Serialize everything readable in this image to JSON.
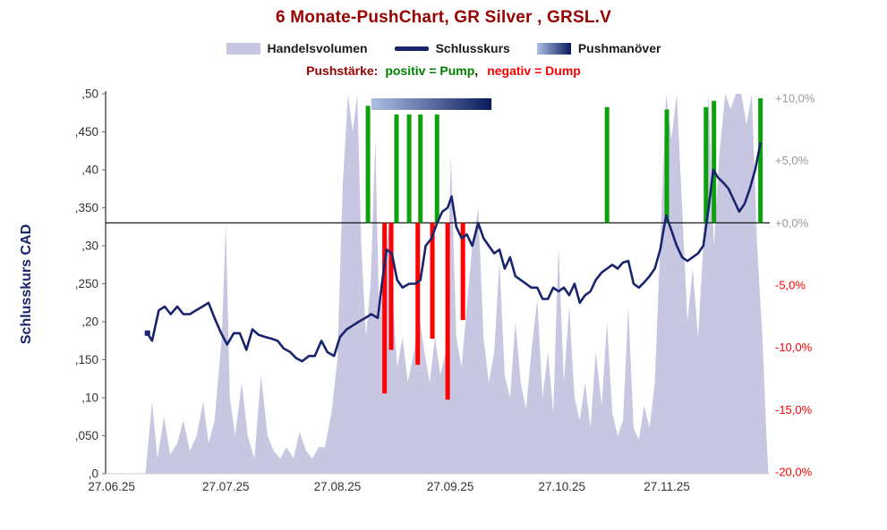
{
  "colors": {
    "title": "#990000",
    "legend_text": "#1a1a1a",
    "axis_text": "#333333",
    "axis_title": "#19246e",
    "volume": "#c7c7e2",
    "price": "#19246e",
    "pump": "#0da10d",
    "pump_text": "#008000",
    "dump": "#ff0000",
    "push_light": "#aebfe4",
    "push_dark": "#0a1a5c",
    "tick_positive": "#999999",
    "tick_negative": "#ff0000"
  },
  "chart_data": {
    "type": "mixed",
    "title": "6 Monate-PushChart, GR Silver , GRSL.V",
    "legend": {
      "volume": "Handelsvolumen",
      "close": "Schlusskurs",
      "push": "Pushmanöver"
    },
    "annotation": {
      "prefix": "Pushstärke:",
      "pump": "positiv = Pump",
      "separator": ",",
      "dump": "negativ = Dump"
    },
    "left_axis": {
      "label": "Schlusskurs CAD",
      "unit": "CAD",
      "min": 0,
      "max": 0.5,
      "ticks": [
        {
          "v": 0.0,
          "label": ",0"
        },
        {
          "v": 0.05,
          "label": ",050"
        },
        {
          "v": 0.1,
          "label": ",10"
        },
        {
          "v": 0.15,
          "label": ",150"
        },
        {
          "v": 0.2,
          "label": ",20"
        },
        {
          "v": 0.25,
          "label": ",250"
        },
        {
          "v": 0.3,
          "label": ",30"
        },
        {
          "v": 0.35,
          "label": ",350"
        },
        {
          "v": 0.4,
          "label": ",40"
        },
        {
          "v": 0.45,
          "label": ",450"
        },
        {
          "v": 0.5,
          "label": ",50"
        }
      ]
    },
    "right_axis": {
      "min": -20,
      "max": 10,
      "ticks": [
        {
          "v": 10,
          "label": "+10,0%",
          "color": "#999999"
        },
        {
          "v": 5,
          "label": "+5,0%",
          "color": "#999999"
        },
        {
          "v": 0,
          "label": "+0,0%",
          "color": "#999999"
        },
        {
          "v": -5,
          "label": "-5,0%",
          "color": "#ff0000"
        },
        {
          "v": -10,
          "label": "-10,0%",
          "color": "#ff0000"
        },
        {
          "v": -15,
          "label": "-15,0%",
          "color": "#ff0000"
        },
        {
          "v": -20,
          "label": "-20,0%",
          "color": "#ff0000"
        }
      ]
    },
    "x_ticks": [
      {
        "f": 0.009,
        "label": "27.06.25"
      },
      {
        "f": 0.181,
        "label": "27.07.25"
      },
      {
        "f": 0.349,
        "label": "27.08.25"
      },
      {
        "f": 0.519,
        "label": "27.09.25"
      },
      {
        "f": 0.687,
        "label": "27.10.25"
      },
      {
        "f": 0.845,
        "label": "27.11.25"
      }
    ],
    "price": {
      "name": "Schlusskurs",
      "points": [
        [
          0.063,
          0.185
        ],
        [
          0.07,
          0.175
        ],
        [
          0.08,
          0.215
        ],
        [
          0.089,
          0.22
        ],
        [
          0.098,
          0.21
        ],
        [
          0.108,
          0.22
        ],
        [
          0.117,
          0.21
        ],
        [
          0.127,
          0.21
        ],
        [
          0.136,
          0.215
        ],
        [
          0.146,
          0.22
        ],
        [
          0.155,
          0.225
        ],
        [
          0.164,
          0.205
        ],
        [
          0.174,
          0.185
        ],
        [
          0.183,
          0.17
        ],
        [
          0.193,
          0.185
        ],
        [
          0.202,
          0.185
        ],
        [
          0.212,
          0.163
        ],
        [
          0.221,
          0.19
        ],
        [
          0.23,
          0.183
        ],
        [
          0.24,
          0.18
        ],
        [
          0.249,
          0.178
        ],
        [
          0.259,
          0.175
        ],
        [
          0.268,
          0.165
        ],
        [
          0.278,
          0.16
        ],
        [
          0.287,
          0.152
        ],
        [
          0.296,
          0.148
        ],
        [
          0.306,
          0.155
        ],
        [
          0.315,
          0.155
        ],
        [
          0.325,
          0.175
        ],
        [
          0.334,
          0.16
        ],
        [
          0.344,
          0.155
        ],
        [
          0.353,
          0.18
        ],
        [
          0.363,
          0.19
        ],
        [
          0.372,
          0.195
        ],
        [
          0.381,
          0.2
        ],
        [
          0.391,
          0.205
        ],
        [
          0.4,
          0.21
        ],
        [
          0.41,
          0.205
        ],
        [
          0.416,
          0.25
        ],
        [
          0.423,
          0.295
        ],
        [
          0.431,
          0.29
        ],
        [
          0.439,
          0.255
        ],
        [
          0.447,
          0.245
        ],
        [
          0.457,
          0.25
        ],
        [
          0.466,
          0.25
        ],
        [
          0.474,
          0.255
        ],
        [
          0.482,
          0.3
        ],
        [
          0.491,
          0.31
        ],
        [
          0.499,
          0.33
        ],
        [
          0.507,
          0.345
        ],
        [
          0.515,
          0.35
        ],
        [
          0.521,
          0.365
        ],
        [
          0.528,
          0.325
        ],
        [
          0.536,
          0.31
        ],
        [
          0.544,
          0.315
        ],
        [
          0.552,
          0.3
        ],
        [
          0.561,
          0.33
        ],
        [
          0.569,
          0.31
        ],
        [
          0.577,
          0.3
        ],
        [
          0.585,
          0.29
        ],
        [
          0.593,
          0.295
        ],
        [
          0.601,
          0.27
        ],
        [
          0.609,
          0.285
        ],
        [
          0.617,
          0.26
        ],
        [
          0.625,
          0.255
        ],
        [
          0.633,
          0.25
        ],
        [
          0.641,
          0.245
        ],
        [
          0.65,
          0.245
        ],
        [
          0.658,
          0.23
        ],
        [
          0.666,
          0.23
        ],
        [
          0.674,
          0.245
        ],
        [
          0.682,
          0.24
        ],
        [
          0.69,
          0.245
        ],
        [
          0.698,
          0.235
        ],
        [
          0.706,
          0.25
        ],
        [
          0.714,
          0.225
        ],
        [
          0.722,
          0.235
        ],
        [
          0.73,
          0.24
        ],
        [
          0.738,
          0.255
        ],
        [
          0.747,
          0.265
        ],
        [
          0.755,
          0.27
        ],
        [
          0.763,
          0.275
        ],
        [
          0.771,
          0.27
        ],
        [
          0.779,
          0.278
        ],
        [
          0.787,
          0.28
        ],
        [
          0.795,
          0.25
        ],
        [
          0.803,
          0.245
        ],
        [
          0.811,
          0.252
        ],
        [
          0.819,
          0.26
        ],
        [
          0.827,
          0.27
        ],
        [
          0.835,
          0.295
        ],
        [
          0.844,
          0.34
        ],
        [
          0.852,
          0.32
        ],
        [
          0.86,
          0.3
        ],
        [
          0.868,
          0.285
        ],
        [
          0.876,
          0.28
        ],
        [
          0.884,
          0.285
        ],
        [
          0.892,
          0.29
        ],
        [
          0.9,
          0.3
        ],
        [
          0.908,
          0.35
        ],
        [
          0.915,
          0.4
        ],
        [
          0.922,
          0.39
        ],
        [
          0.93,
          0.383
        ],
        [
          0.938,
          0.375
        ],
        [
          0.946,
          0.36
        ],
        [
          0.954,
          0.345
        ],
        [
          0.962,
          0.355
        ],
        [
          0.97,
          0.375
        ],
        [
          0.978,
          0.4
        ],
        [
          0.986,
          0.435
        ]
      ]
    },
    "volume": {
      "name": "Handelsvolumen",
      "scale": "relative to left axis",
      "points": [
        [
          0.06,
          0.0
        ],
        [
          0.07,
          0.095
        ],
        [
          0.078,
          0.02
        ],
        [
          0.088,
          0.075
        ],
        [
          0.097,
          0.025
        ],
        [
          0.108,
          0.04
        ],
        [
          0.117,
          0.07
        ],
        [
          0.127,
          0.03
        ],
        [
          0.137,
          0.05
        ],
        [
          0.147,
          0.095
        ],
        [
          0.155,
          0.04
        ],
        [
          0.164,
          0.07
        ],
        [
          0.175,
          0.18
        ],
        [
          0.181,
          0.33
        ],
        [
          0.187,
          0.1
        ],
        [
          0.195,
          0.05
        ],
        [
          0.205,
          0.12
        ],
        [
          0.214,
          0.05
        ],
        [
          0.224,
          0.02
        ],
        [
          0.234,
          0.13
        ],
        [
          0.244,
          0.05
        ],
        [
          0.253,
          0.03
        ],
        [
          0.263,
          0.02
        ],
        [
          0.272,
          0.035
        ],
        [
          0.283,
          0.02
        ],
        [
          0.292,
          0.055
        ],
        [
          0.302,
          0.03
        ],
        [
          0.311,
          0.02
        ],
        [
          0.321,
          0.035
        ],
        [
          0.33,
          0.035
        ],
        [
          0.34,
          0.08
        ],
        [
          0.349,
          0.15
        ],
        [
          0.357,
          0.38
        ],
        [
          0.365,
          0.5
        ],
        [
          0.372,
          0.45
        ],
        [
          0.379,
          0.5
        ],
        [
          0.385,
          0.3
        ],
        [
          0.392,
          0.18
        ],
        [
          0.399,
          0.25
        ],
        [
          0.406,
          0.44
        ],
        [
          0.412,
          0.2
        ],
        [
          0.419,
          0.25
        ],
        [
          0.426,
          0.33
        ],
        [
          0.433,
          0.22
        ],
        [
          0.439,
          0.14
        ],
        [
          0.447,
          0.18
        ],
        [
          0.455,
          0.12
        ],
        [
          0.464,
          0.16
        ],
        [
          0.472,
          0.21
        ],
        [
          0.48,
          0.16
        ],
        [
          0.488,
          0.12
        ],
        [
          0.496,
          0.18
        ],
        [
          0.504,
          0.13
        ],
        [
          0.512,
          0.16
        ],
        [
          0.52,
          0.42
        ],
        [
          0.528,
          0.18
        ],
        [
          0.536,
          0.14
        ],
        [
          0.544,
          0.22
        ],
        [
          0.552,
          0.3
        ],
        [
          0.561,
          0.35
        ],
        [
          0.569,
          0.18
        ],
        [
          0.577,
          0.12
        ],
        [
          0.585,
          0.16
        ],
        [
          0.593,
          0.28
        ],
        [
          0.601,
          0.13
        ],
        [
          0.609,
          0.1
        ],
        [
          0.617,
          0.2
        ],
        [
          0.625,
          0.12
        ],
        [
          0.633,
          0.085
        ],
        [
          0.641,
          0.16
        ],
        [
          0.65,
          0.23
        ],
        [
          0.658,
          0.1
        ],
        [
          0.666,
          0.16
        ],
        [
          0.674,
          0.08
        ],
        [
          0.682,
          0.3
        ],
        [
          0.69,
          0.12
        ],
        [
          0.698,
          0.22
        ],
        [
          0.706,
          0.1
        ],
        [
          0.714,
          0.07
        ],
        [
          0.722,
          0.12
        ],
        [
          0.73,
          0.06
        ],
        [
          0.738,
          0.16
        ],
        [
          0.747,
          0.09
        ],
        [
          0.755,
          0.2
        ],
        [
          0.763,
          0.08
        ],
        [
          0.771,
          0.05
        ],
        [
          0.779,
          0.07
        ],
        [
          0.787,
          0.22
        ],
        [
          0.795,
          0.06
        ],
        [
          0.803,
          0.045
        ],
        [
          0.811,
          0.09
        ],
        [
          0.819,
          0.06
        ],
        [
          0.827,
          0.12
        ],
        [
          0.835,
          0.3
        ],
        [
          0.844,
          0.5
        ],
        [
          0.852,
          0.44
        ],
        [
          0.86,
          0.5
        ],
        [
          0.868,
          0.35
        ],
        [
          0.876,
          0.2
        ],
        [
          0.884,
          0.27
        ],
        [
          0.892,
          0.18
        ],
        [
          0.9,
          0.3
        ],
        [
          0.908,
          0.5
        ],
        [
          0.916,
          0.3
        ],
        [
          0.924,
          0.42
        ],
        [
          0.933,
          0.5
        ],
        [
          0.941,
          0.48
        ],
        [
          0.949,
          0.5
        ],
        [
          0.957,
          0.5
        ],
        [
          0.965,
          0.46
        ],
        [
          0.973,
          0.5
        ],
        [
          0.981,
          0.3
        ],
        [
          0.989,
          0.18
        ],
        [
          0.995,
          0.05
        ],
        [
          0.998,
          0.0
        ]
      ]
    },
    "pump_bars": [
      [
        0.395,
        9.4
      ],
      [
        0.438,
        8.7
      ],
      [
        0.457,
        8.7
      ],
      [
        0.474,
        8.7
      ],
      [
        0.499,
        8.7
      ],
      [
        0.755,
        9.3
      ],
      [
        0.845,
        9.1
      ],
      [
        0.904,
        9.3
      ],
      [
        0.916,
        9.8
      ],
      [
        0.986,
        10.0
      ]
    ],
    "dump_bars": [
      [
        0.42,
        -13.7
      ],
      [
        0.43,
        -10.2
      ],
      [
        0.47,
        -11.4
      ],
      [
        0.492,
        -9.3
      ],
      [
        0.515,
        -14.2
      ],
      [
        0.538,
        -7.8
      ]
    ],
    "push_bar": {
      "f_start": 0.4,
      "f_end": 0.581
    }
  }
}
